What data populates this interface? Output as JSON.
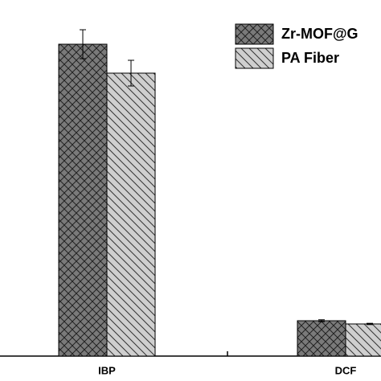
{
  "chart_data": {
    "type": "bar",
    "categories": [
      "IBP",
      "DCF"
    ],
    "series": [
      {
        "name": "Zr-MOF@G",
        "color": "#7a7a7a",
        "values": [
          97,
          11
        ],
        "errors": [
          4.5,
          0.3
        ]
      },
      {
        "name": "PA Fiber",
        "color": "#cfcfcf",
        "values": [
          88,
          10
        ],
        "errors": [
          4,
          0.2
        ]
      }
    ],
    "ylim": [
      0,
      100
    ]
  }
}
